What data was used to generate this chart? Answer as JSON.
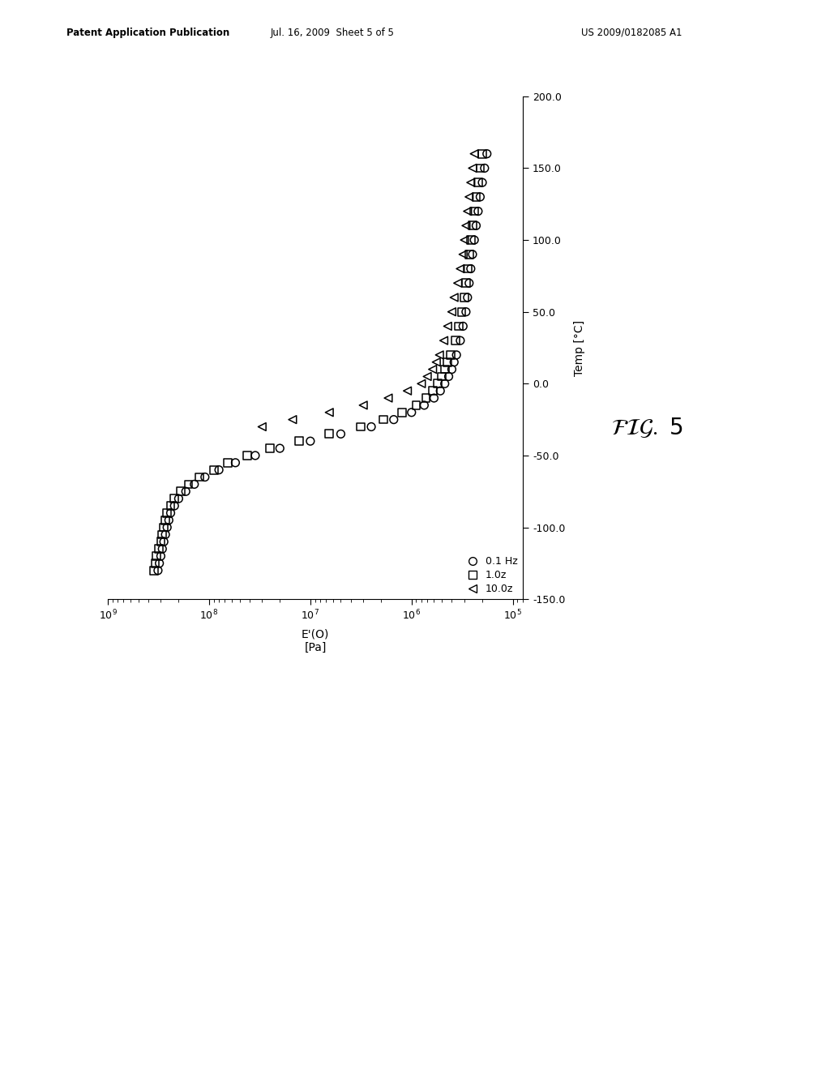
{
  "header_left": "Patent Application Publication",
  "header_mid": "Jul. 16, 2009  Sheet 5 of 5",
  "header_right": "US 2009/0182085 A1",
  "xlabel": "E'(O)\n[Pa]",
  "ylabel": "Temp [°C]",
  "ylim": [
    -150.0,
    200.0
  ],
  "yticks": [
    -150.0,
    -100.0,
    -50.0,
    0.0,
    50.0,
    100.0,
    150.0,
    200.0
  ],
  "legend_labels": [
    "0.1 Hz",
    "1.0z",
    "10.0z"
  ],
  "background_color": "#ffffff",
  "marker_color": "#000000",
  "temps_circle": [
    -130,
    -125,
    -120,
    -115,
    -110,
    -105,
    -100,
    -95,
    -90,
    -85,
    -80,
    -75,
    -70,
    -65,
    -60,
    -55,
    -50,
    -45,
    -40,
    -35,
    -30,
    -25,
    -20,
    -15,
    -10,
    -5,
    0,
    5,
    10,
    15,
    20,
    30,
    40,
    50,
    60,
    70,
    80,
    90,
    100,
    110,
    120,
    130,
    140,
    150,
    160
  ],
  "E_circle": [
    320000000.0,
    310000000.0,
    300000000.0,
    290000000.0,
    280000000.0,
    270000000.0,
    260000000.0,
    250000000.0,
    240000000.0,
    220000000.0,
    200000000.0,
    170000000.0,
    140000000.0,
    110000000.0,
    80000000.0,
    55000000.0,
    35000000.0,
    20000000.0,
    10000000.0,
    5000000.0,
    2500000.0,
    1500000.0,
    1000000.0,
    750000.0,
    600000.0,
    520000.0,
    470000.0,
    430000.0,
    400000.0,
    380000.0,
    360000.0,
    330000.0,
    310000.0,
    290000.0,
    280000.0,
    270000.0,
    260000.0,
    250000.0,
    240000.0,
    230000.0,
    220000.0,
    210000.0,
    200000.0,
    190000.0,
    180000.0
  ],
  "temps_square": [
    -130,
    -125,
    -120,
    -115,
    -110,
    -105,
    -100,
    -95,
    -90,
    -85,
    -80,
    -75,
    -70,
    -65,
    -60,
    -55,
    -50,
    -45,
    -40,
    -35,
    -30,
    -25,
    -20,
    -15,
    -10,
    -5,
    0,
    5,
    10,
    15,
    20,
    30,
    40,
    50,
    60,
    70,
    80,
    90,
    100,
    110,
    120,
    130,
    140,
    150,
    160
  ],
  "E_square": [
    350000000.0,
    340000000.0,
    330000000.0,
    315000000.0,
    300000000.0,
    290000000.0,
    280000000.0,
    270000000.0,
    260000000.0,
    240000000.0,
    220000000.0,
    190000000.0,
    160000000.0,
    125000000.0,
    90000000.0,
    65000000.0,
    42000000.0,
    25000000.0,
    13000000.0,
    6500000.0,
    3200000.0,
    1900000.0,
    1250000.0,
    900000.0,
    720000.0,
    620000.0,
    550000.0,
    500000.0,
    470000.0,
    440000.0,
    410000.0,
    370000.0,
    340000.0,
    320000.0,
    300000.0,
    290000.0,
    280000.0,
    270000.0,
    260000.0,
    250000.0,
    240000.0,
    230000.0,
    220000.0,
    210000.0,
    200000.0
  ],
  "temps_triangle": [
    -30,
    -25,
    -20,
    -15,
    -10,
    -5,
    0,
    5,
    10,
    15,
    20,
    30,
    40,
    50,
    60,
    70,
    80,
    90,
    100,
    110,
    120,
    130,
    140,
    150,
    160
  ],
  "E_triangle": [
    30000000.0,
    15000000.0,
    6500000.0,
    3000000.0,
    1700000.0,
    1100000.0,
    800000.0,
    700000.0,
    620000.0,
    570000.0,
    530000.0,
    480000.0,
    440000.0,
    400000.0,
    380000.0,
    350000.0,
    330000.0,
    310000.0,
    300000.0,
    290000.0,
    280000.0,
    270000.0,
    260000.0,
    250000.0,
    240000.0
  ]
}
